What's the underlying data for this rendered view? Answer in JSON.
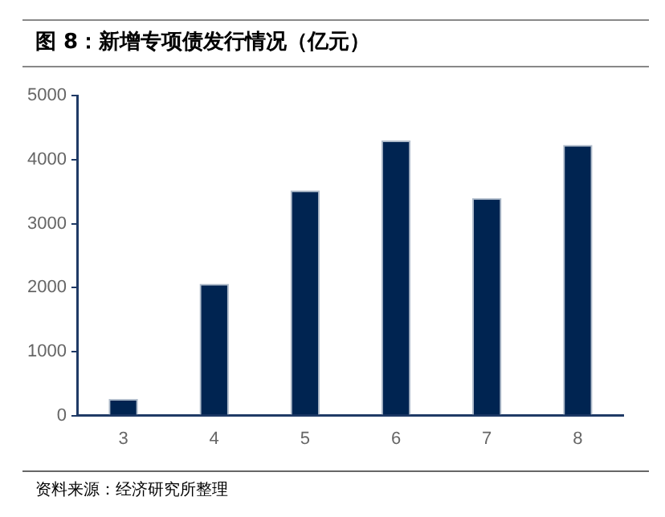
{
  "chart_data": {
    "type": "bar",
    "title": "图 8：新增专项债发行情况（亿元）",
    "categories": [
      "3",
      "4",
      "5",
      "6",
      "7",
      "8"
    ],
    "values": [
      260,
      2060,
      3520,
      4300,
      3400,
      4230
    ],
    "color": "#002451",
    "ylim": [
      0,
      5000
    ],
    "yticks": [
      0,
      1000,
      2000,
      3000,
      4000,
      5000
    ],
    "grid": false,
    "legend": false,
    "annotations": [
      "资料来源：经济研究所整理"
    ]
  }
}
